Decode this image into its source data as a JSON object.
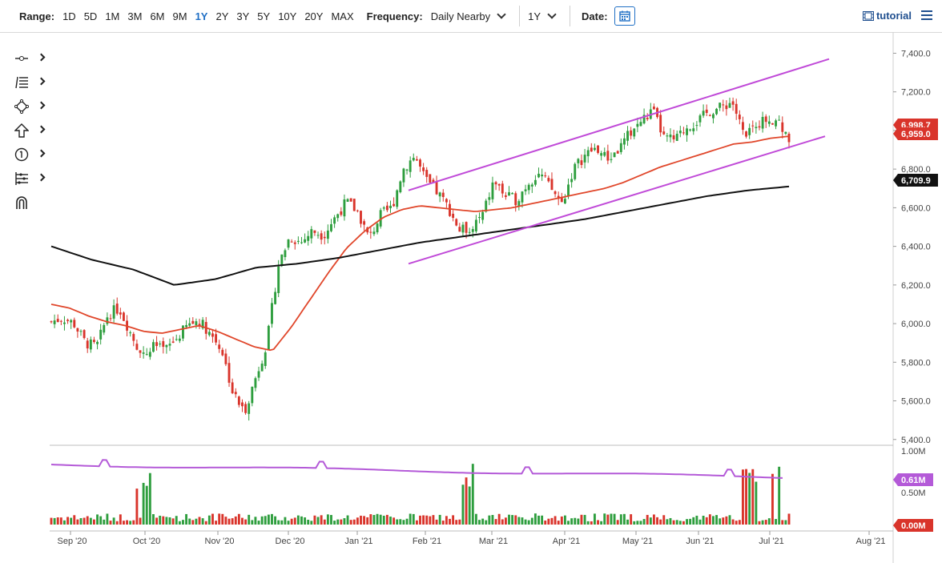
{
  "toolbar": {
    "range_label": "Range:",
    "ranges": [
      "1D",
      "5D",
      "1M",
      "3M",
      "6M",
      "9M",
      "1Y",
      "2Y",
      "3Y",
      "5Y",
      "10Y",
      "20Y",
      "MAX"
    ],
    "active_range": "1Y",
    "frequency_label": "Frequency:",
    "frequency_value": "Daily Nearby",
    "period_value": "1Y",
    "date_label": "Date:",
    "tutorial_label": "tutorial"
  },
  "drawing_tools": [
    "line-tool-icon",
    "fib-tool-icon",
    "shape-tool-icon",
    "arrow-up-tool-icon",
    "annotation-tool-icon",
    "measure-tool-icon",
    "magnet-tool-icon"
  ],
  "colors": {
    "up": "#2e9e3e",
    "down": "#d9342b",
    "ma_short": "#e0462a",
    "ma_long": "#111111",
    "channel": "#c04ad8",
    "volume_avg": "#b45ad8"
  },
  "chart_data": {
    "type": "candlestick",
    "price_axis": {
      "ticks": [
        "7,400.0",
        "7,200.0",
        "7,000.0",
        "6,800.0",
        "6,600.0",
        "6,400.0",
        "6,200.0",
        "6,000.0",
        "5,800.0",
        "5,600.0",
        "5,400.0"
      ],
      "range": [
        5370,
        7460
      ]
    },
    "time_axis": [
      "Sep '20",
      "Oct '20",
      "Nov '20",
      "Dec '20",
      "Jan '21",
      "Feb '21",
      "Mar '21",
      "Apr '21",
      "May '21",
      "Jun '21",
      "Jul '21",
      "Aug '21"
    ],
    "last_price_labels": [
      {
        "text": "6,998.7",
        "color": "#d9342b"
      },
      {
        "text": "6,959.0",
        "color": "#d9342b"
      },
      {
        "text": "6,709.9",
        "color": "#111111"
      }
    ],
    "volume_axis": {
      "ticks": [
        "1.00M",
        "0.50M",
        "0.00M"
      ]
    },
    "volume_labels": [
      {
        "text": "0.61M",
        "color": "#b45ad8"
      },
      {
        "text": "0.00M",
        "color": "#d9342b"
      }
    ],
    "price_path": [
      6010,
      6030,
      6000,
      5900,
      5880,
      6050,
      6080,
      5950,
      5830,
      5880,
      5860,
      5920,
      5990,
      6020,
      5950,
      5870,
      5640,
      5540,
      5720,
      5900,
      6300,
      6450,
      6420,
      6480,
      6460,
      6550,
      6630,
      6580,
      6440,
      6560,
      6600,
      6800,
      6870,
      6740,
      6680,
      6600,
      6480,
      6500,
      6560,
      6740,
      6660,
      6640,
      6730,
      6780,
      6700,
      6620,
      6800,
      6870,
      6910,
      6850,
      6900,
      6990,
      7050,
      7100,
      6960,
      6950,
      7020,
      7050,
      7100,
      7120,
      7150,
      6980,
      7030,
      7060,
      7060,
      6959
    ],
    "ma50_path": [
      6100,
      6080,
      6040,
      6010,
      5990,
      5960,
      5950,
      5970,
      5990,
      5960,
      5920,
      5880,
      5860,
      5980,
      6120,
      6260,
      6390,
      6480,
      6550,
      6590,
      6610,
      6600,
      6590,
      6580,
      6590,
      6600,
      6620,
      6640,
      6660,
      6680,
      6700,
      6730,
      6770,
      6810,
      6840,
      6870,
      6900,
      6930,
      6940,
      6960,
      6970
    ],
    "ma200_path": [
      6400,
      6330,
      6280,
      6200,
      6230,
      6290,
      6310,
      6340,
      6380,
      6420,
      6450,
      6480,
      6510,
      6540,
      6580,
      6620,
      6660,
      6690,
      6710
    ],
    "channel_upper": [
      [
        6690,
        "Feb '21"
      ],
      [
        7370,
        "Aug '21"
      ]
    ],
    "channel_lower": [
      [
        6310,
        "Feb '21"
      ],
      [
        6970,
        "Aug '21"
      ]
    ]
  }
}
